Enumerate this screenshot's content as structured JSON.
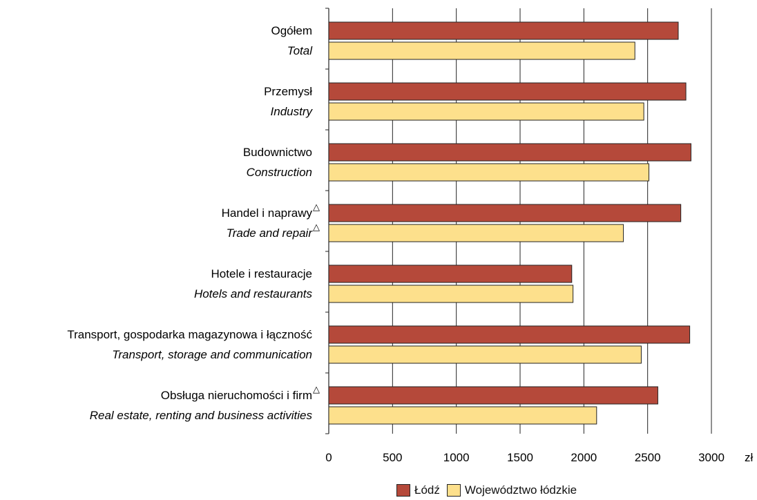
{
  "chart_data": {
    "type": "bar",
    "orientation": "horizontal",
    "categories": [
      {
        "pl": "Ogółem",
        "en": "Total",
        "mark_pl": false,
        "mark_en": false
      },
      {
        "pl": "Przemysł",
        "en": "Industry",
        "mark_pl": false,
        "mark_en": false
      },
      {
        "pl": "Budownictwo",
        "en": "Construction",
        "mark_pl": false,
        "mark_en": false
      },
      {
        "pl": "Handel i naprawy",
        "en": "Trade and repair",
        "mark_pl": true,
        "mark_en": true
      },
      {
        "pl": "Hotele i restauracje",
        "en": "Hotels and restaurants",
        "mark_pl": false,
        "mark_en": false
      },
      {
        "pl": "Transport, gospodarka magazynowa i łączność",
        "en": "Transport, storage and communication",
        "mark_pl": false,
        "mark_en": false
      },
      {
        "pl": "Obsługa nieruchomości i firm",
        "en": "Real estate, renting and business activities",
        "mark_pl": true,
        "mark_en": false
      }
    ],
    "series": [
      {
        "name": "Łódź",
        "color": "#b5493a",
        "values": [
          2740,
          2800,
          2840,
          2760,
          1905,
          2830,
          2580
        ]
      },
      {
        "name": "Województwo łódzkie",
        "color": "#fde08c",
        "values": [
          2400,
          2470,
          2510,
          2310,
          1915,
          2450,
          2100
        ]
      }
    ],
    "xlim": [
      0,
      3000
    ],
    "xticks": [
      0,
      500,
      1000,
      1500,
      2000,
      2500,
      3000
    ],
    "xunit": "zł",
    "marker_symbol": "△",
    "grid": true,
    "legend_position": "bottom"
  }
}
